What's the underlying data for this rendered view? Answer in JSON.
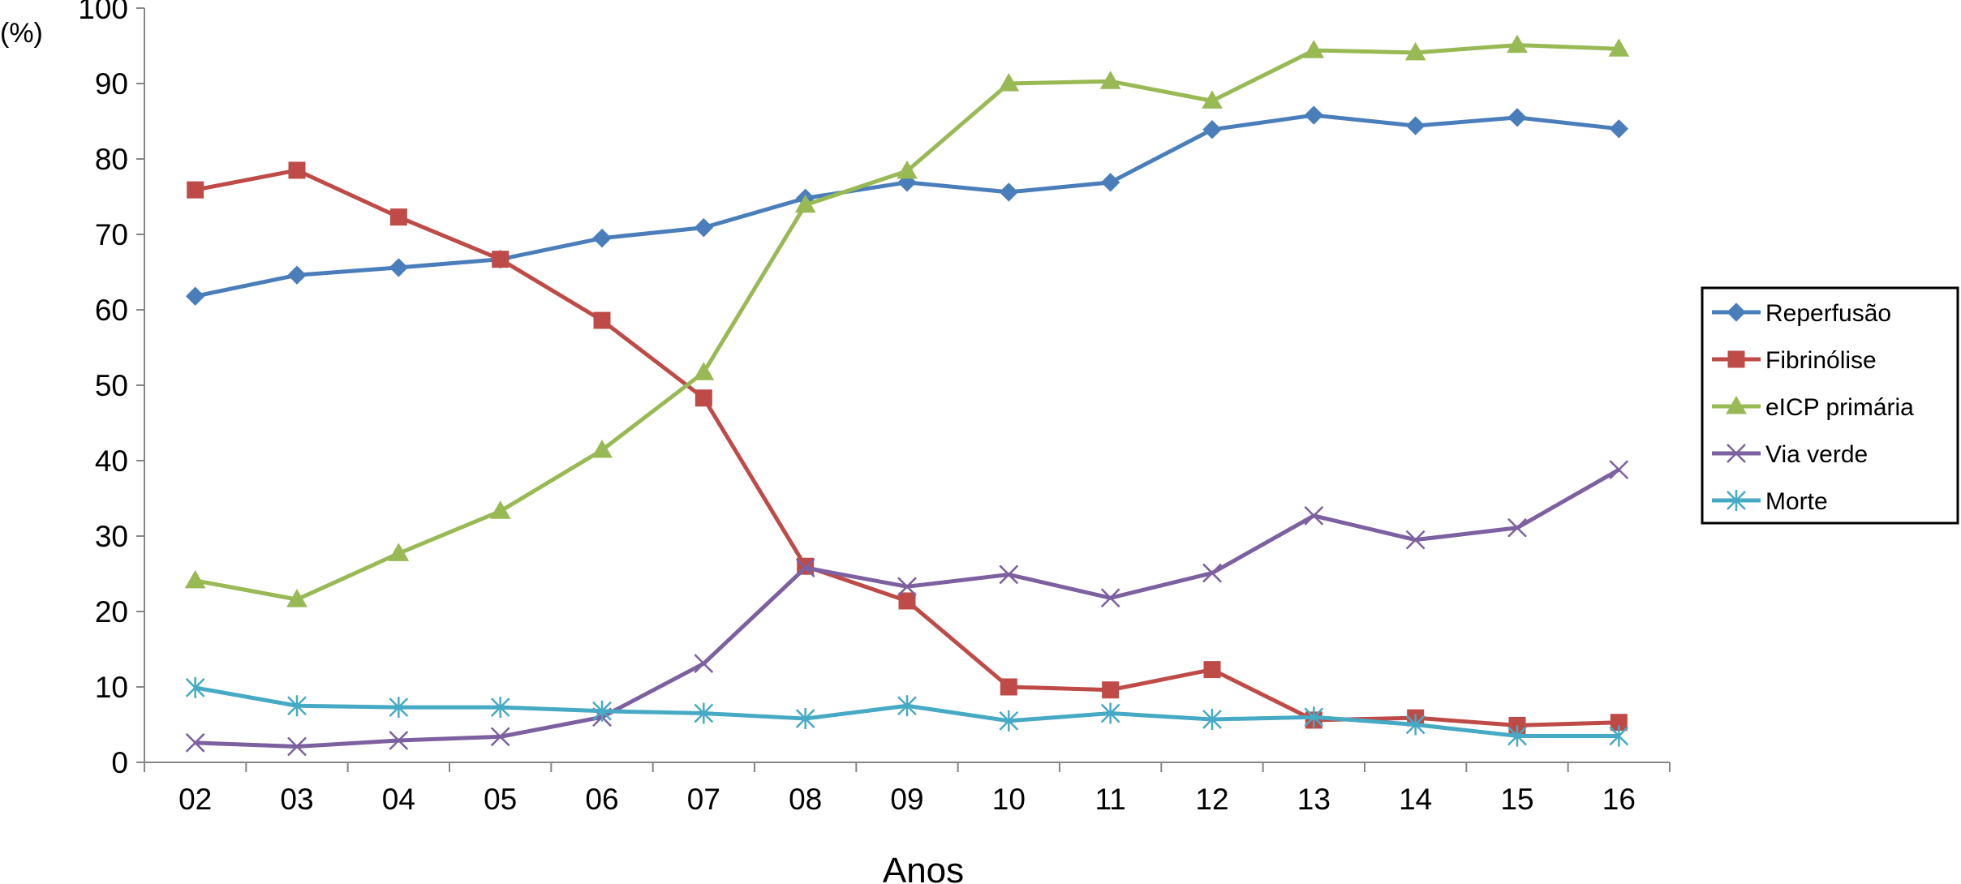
{
  "chart_data": {
    "type": "line",
    "ylabel": "(%)",
    "xlabel": "Anos",
    "ylim": [
      0,
      100
    ],
    "yticks": [
      0,
      10,
      20,
      30,
      40,
      50,
      60,
      70,
      80,
      90,
      100
    ],
    "categories": [
      "02",
      "03",
      "04",
      "05",
      "06",
      "07",
      "08",
      "09",
      "10",
      "11",
      "12",
      "13",
      "14",
      "15",
      "16"
    ],
    "grid": false,
    "legend_position": "right",
    "series": [
      {
        "name": "Reperfusão",
        "color": "#4a7ebb",
        "marker": "diamond",
        "values": [
          61.8,
          64.6,
          65.6,
          66.7,
          69.5,
          70.9,
          74.8,
          76.9,
          75.6,
          76.9,
          83.9,
          85.8,
          84.4,
          85.5,
          84.0
        ]
      },
      {
        "name": "Fibrinólise",
        "color": "#be4b48",
        "marker": "square",
        "values": [
          75.9,
          78.5,
          72.3,
          66.7,
          58.6,
          48.3,
          26.0,
          21.4,
          10.0,
          9.6,
          12.3,
          5.6,
          5.9,
          4.9,
          5.3
        ]
      },
      {
        "name": "eICP primária",
        "color": "#98b954",
        "marker": "triangle",
        "values": [
          24.1,
          21.6,
          27.7,
          33.3,
          41.4,
          51.7,
          73.9,
          78.4,
          90.0,
          90.3,
          87.7,
          94.4,
          94.1,
          95.1,
          94.6
        ]
      },
      {
        "name": "Via verde",
        "color": "#7d60a0",
        "marker": "x",
        "values": [
          2.6,
          2.1,
          2.9,
          3.4,
          6.0,
          13.1,
          25.8,
          23.3,
          24.9,
          21.8,
          25.1,
          32.7,
          29.5,
          31.1,
          38.8
        ]
      },
      {
        "name": "Morte",
        "color": "#46aac5",
        "marker": "star",
        "values": [
          9.9,
          7.5,
          7.3,
          7.3,
          6.8,
          6.5,
          5.8,
          7.5,
          5.5,
          6.5,
          5.7,
          6.0,
          5.0,
          3.5,
          3.5
        ]
      }
    ]
  }
}
